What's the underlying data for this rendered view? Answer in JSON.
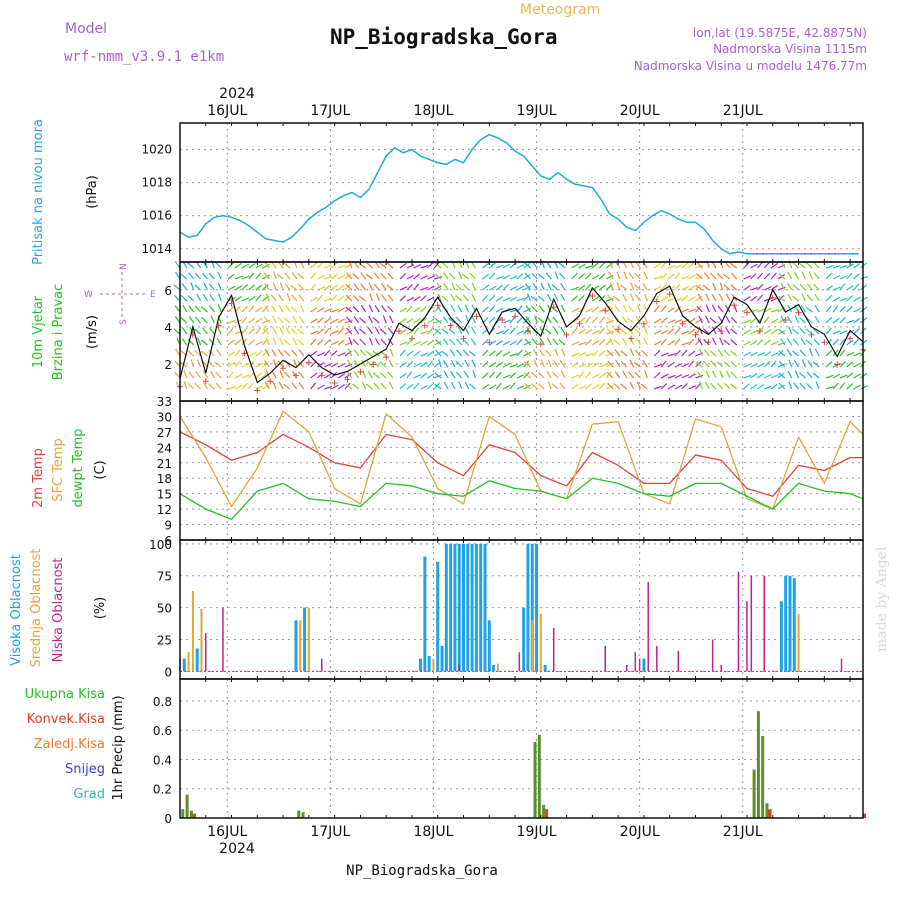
{
  "header": {
    "model_label": "Model",
    "model_name": "wrf-nmm_v3.9.1 e1km",
    "title": "NP_Biogradska_Gora",
    "meteogram": "Meteogram",
    "lonlat": "lon,lat (19.5875E, 42.8875N)",
    "altitude": "Nadmorska Visina 1115m",
    "model_altitude": "Nadmorska Visina u modelu 1476.77m",
    "year": "2024",
    "watermark": "made by Angel",
    "footer": "NP_Biogradska_Gora"
  },
  "colors": {
    "pressure": "#1fa9e1",
    "temp2m": "#e4413c",
    "sfc": "#e0a53a",
    "dew": "#22c222",
    "cloud_high": "#1fa2e6",
    "cloud_mid": "#e8a23a",
    "cloud_low": "#c2208e",
    "precip_total": "#5b8f2a",
    "precip_conv": "#e13a2a",
    "precip_frozen": "#f07b2a",
    "snow": "#3b3be0",
    "hail": "#2ab8b8",
    "model_text": "#a85fd6"
  },
  "x_ticks": [
    "16JUL",
    "17JUL",
    "18JUL",
    "19JUL",
    "20JUL",
    "21JUL"
  ],
  "chart_data": [
    {
      "type": "line",
      "ylabel": "Pritisak na nivou mora",
      "unit": "(hPa)",
      "ylim": [
        1013.2,
        1021.6
      ],
      "yticks": [
        1014,
        1016,
        1018,
        1020
      ],
      "series": [
        {
          "x": [
            0,
            2,
            4,
            6,
            8,
            10,
            12,
            14,
            16,
            18,
            20,
            22,
            24,
            26,
            28,
            30,
            32,
            34,
            36,
            38,
            40,
            42,
            44,
            46,
            48,
            50,
            52,
            54,
            56,
            58,
            60,
            62,
            64,
            66,
            68,
            70,
            72,
            74,
            76,
            78,
            80,
            82,
            84,
            86,
            88,
            90,
            92,
            94,
            96,
            98,
            100,
            102,
            104,
            106,
            108,
            110,
            112,
            114,
            116,
            118,
            120,
            122,
            124,
            126,
            128,
            130,
            132,
            134,
            136,
            138,
            140,
            142,
            144,
            146,
            148,
            150,
            152,
            154,
            156,
            158
          ],
          "values": [
            1015.0,
            1014.7,
            1014.8,
            1015.5,
            1015.9,
            1016.0,
            1015.9,
            1015.7,
            1015.4,
            1015.0,
            1014.6,
            1014.5,
            1014.4,
            1014.7,
            1015.2,
            1015.8,
            1016.2,
            1016.5,
            1016.9,
            1017.2,
            1017.4,
            1017.1,
            1017.6,
            1018.6,
            1019.6,
            1020.1,
            1019.8,
            1020.0,
            1019.6,
            1019.4,
            1019.2,
            1019.1,
            1019.4,
            1019.2,
            1020.0,
            1020.6,
            1020.9,
            1020.7,
            1020.4,
            1019.9,
            1019.6,
            1019.0,
            1018.4,
            1018.2,
            1018.6,
            1018.2,
            1017.9,
            1017.8,
            1017.7,
            1017.0,
            1016.1,
            1015.8,
            1015.3,
            1015.1,
            1015.6,
            1016.0,
            1016.3,
            1016.1,
            1015.8,
            1015.6,
            1015.6,
            1015.2,
            1014.5,
            1014.0,
            1013.7,
            1013.8,
            1013.7,
            1013.7,
            1013.7,
            1013.7,
            1013.7,
            1013.7,
            1013.7,
            1013.7,
            1013.7,
            1013.7,
            1013.7,
            1013.7,
            1013.7,
            1013.7
          ]
        }
      ]
    },
    {
      "type": "line",
      "ylabel": "10m Vjetar Brzina i Pravac",
      "unit": "(m/s)",
      "ylim": [
        0,
        7.5
      ],
      "yticks": [
        2,
        4,
        6
      ],
      "compass": {
        "north": "N",
        "west": "W",
        "east": "E",
        "south": "S"
      },
      "series": [
        {
          "name": "speed",
          "x": [
            0,
            3,
            6,
            9,
            12,
            15,
            18,
            21,
            24,
            27,
            30,
            33,
            36,
            39,
            42,
            45,
            48,
            51,
            54,
            57,
            60,
            63,
            66,
            69,
            72,
            75,
            78,
            81,
            84,
            87,
            90,
            93,
            96,
            99,
            102,
            105,
            108,
            111,
            114,
            117,
            120,
            123,
            126,
            129,
            132,
            135,
            138,
            141,
            144,
            147,
            150,
            153,
            156,
            159
          ],
          "values": [
            1.2,
            4.0,
            1.5,
            4.5,
            5.7,
            3.0,
            1.0,
            1.5,
            2.2,
            1.8,
            2.5,
            1.8,
            1.4,
            1.6,
            2.0,
            2.4,
            2.8,
            4.2,
            3.8,
            4.5,
            5.6,
            4.5,
            3.8,
            5.0,
            3.6,
            4.8,
            5.0,
            4.2,
            3.5,
            5.5,
            4.0,
            4.6,
            6.1,
            5.3,
            4.3,
            3.8,
            4.6,
            5.8,
            6.2,
            4.6,
            4.0,
            3.6,
            4.2,
            5.6,
            5.2,
            4.2,
            6.0,
            4.8,
            5.2,
            4.0,
            3.6,
            2.4,
            3.8,
            3.2
          ]
        }
      ]
    },
    {
      "type": "line",
      "ylabels": [
        "2m Temp",
        "SFC Temp",
        "dewpt Temp"
      ],
      "unit": "(C)",
      "ylim": [
        6,
        33
      ],
      "yticks": [
        6,
        9,
        12,
        15,
        18,
        21,
        24,
        27,
        30,
        33
      ],
      "series": [
        {
          "name": "2m Temp",
          "x": [
            0,
            6,
            12,
            18,
            24,
            30,
            36,
            42,
            48,
            54,
            60,
            66,
            72,
            78,
            84,
            90,
            96,
            102,
            108,
            114,
            120,
            126,
            132,
            138,
            144,
            150,
            156,
            159
          ],
          "values": [
            27.0,
            24.5,
            21.5,
            23.0,
            26.5,
            24.0,
            21.0,
            20.0,
            26.5,
            25.5,
            21.0,
            18.5,
            24.5,
            23.0,
            18.5,
            16.5,
            23.0,
            20.5,
            17.0,
            17.0,
            22.5,
            21.5,
            16.0,
            14.5,
            20.5,
            19.5,
            22.0,
            22.0
          ]
        },
        {
          "name": "SFC Temp",
          "x": [
            0,
            6,
            12,
            18,
            24,
            30,
            36,
            42,
            48,
            54,
            60,
            66,
            72,
            78,
            84,
            90,
            96,
            102,
            108,
            114,
            120,
            126,
            132,
            138,
            144,
            150,
            156,
            159
          ],
          "values": [
            30.0,
            22.0,
            12.5,
            20.0,
            31.0,
            27.0,
            16.0,
            13.0,
            30.5,
            26.0,
            16.0,
            13.0,
            30.0,
            26.5,
            15.5,
            14.0,
            28.5,
            29.0,
            15.0,
            13.0,
            29.5,
            28.0,
            14.0,
            12.0,
            26.0,
            17.0,
            29.0,
            26.5
          ]
        },
        {
          "name": "dewpt Temp",
          "x": [
            0,
            6,
            12,
            18,
            24,
            30,
            36,
            42,
            48,
            54,
            60,
            66,
            72,
            78,
            84,
            90,
            96,
            102,
            108,
            114,
            120,
            126,
            132,
            138,
            144,
            150,
            156,
            159
          ],
          "values": [
            15.0,
            12.0,
            10.0,
            15.5,
            17.0,
            14.0,
            13.5,
            12.5,
            17.0,
            16.5,
            15.0,
            14.5,
            17.5,
            16.0,
            15.5,
            14.0,
            18.0,
            17.0,
            15.0,
            14.5,
            17.0,
            17.0,
            14.5,
            12.0,
            17.0,
            15.5,
            15.0,
            14.0
          ]
        }
      ]
    },
    {
      "type": "bar",
      "ylabels": [
        "Visoka Oblacnost",
        "Srednja Oblacnost",
        "Niska Oblacnost"
      ],
      "unit": "(%)",
      "ylim": [
        0,
        100
      ],
      "yticks": [
        0,
        25,
        50,
        75,
        100
      ],
      "series": [
        {
          "name": "Visoka Oblacnost",
          "x": [
            1,
            4,
            27,
            29,
            56,
            57,
            58,
            60,
            61,
            62,
            63,
            64,
            65,
            66,
            67,
            68,
            69,
            70,
            71,
            72,
            73,
            80,
            81,
            82,
            83,
            85,
            108,
            140,
            141,
            142,
            143
          ],
          "values": [
            10,
            18,
            40,
            50,
            10,
            90,
            12,
            86,
            20,
            100,
            100,
            100,
            100,
            100,
            100,
            100,
            100,
            100,
            100,
            40,
            5,
            50,
            100,
            100,
            100,
            5,
            10,
            55,
            75,
            75,
            73
          ]
        },
        {
          "name": "Srednja Oblacnost",
          "x": [
            2,
            3,
            5,
            28,
            30,
            59,
            74,
            82,
            84,
            144
          ],
          "values": [
            15,
            63,
            49,
            40,
            50,
            10,
            6,
            40,
            45,
            45
          ]
        },
        {
          "name": "Niska Oblacnost",
          "x": [
            0,
            6,
            10,
            33,
            65,
            79,
            87,
            99,
            104,
            106,
            107,
            109,
            111,
            116,
            124,
            126,
            130,
            132,
            133,
            136,
            154
          ],
          "values": [
            10,
            30,
            50,
            10,
            5,
            15,
            34,
            20,
            5,
            15,
            10,
            70,
            20,
            16,
            25,
            5,
            78,
            55,
            75,
            75,
            10
          ]
        }
      ]
    },
    {
      "type": "bar",
      "ylabels": [
        "Ukupna Kisa",
        "Konvek.Kisa",
        "Zaledj.Kisa",
        "Snijeg",
        "Grad"
      ],
      "unit": "1hr Precip (mm)",
      "ylim": [
        0,
        0.95
      ],
      "yticks": [
        0,
        0.2,
        0.4,
        0.6,
        0.8
      ],
      "series": [
        {
          "name": "Ukupna Kisa",
          "x": [
            1,
            2,
            3,
            28,
            29,
            83,
            84,
            85,
            134,
            135,
            136,
            137
          ],
          "values": [
            0.06,
            0.16,
            0.05,
            0.05,
            0.04,
            0.52,
            0.57,
            0.09,
            0.33,
            0.73,
            0.56,
            0.1
          ]
        },
        {
          "name": "Konvek.Kisa",
          "x": [
            3,
            85,
            137,
            159
          ],
          "values": [
            0.03,
            0.06,
            0.06,
            0.03
          ]
        }
      ]
    }
  ]
}
